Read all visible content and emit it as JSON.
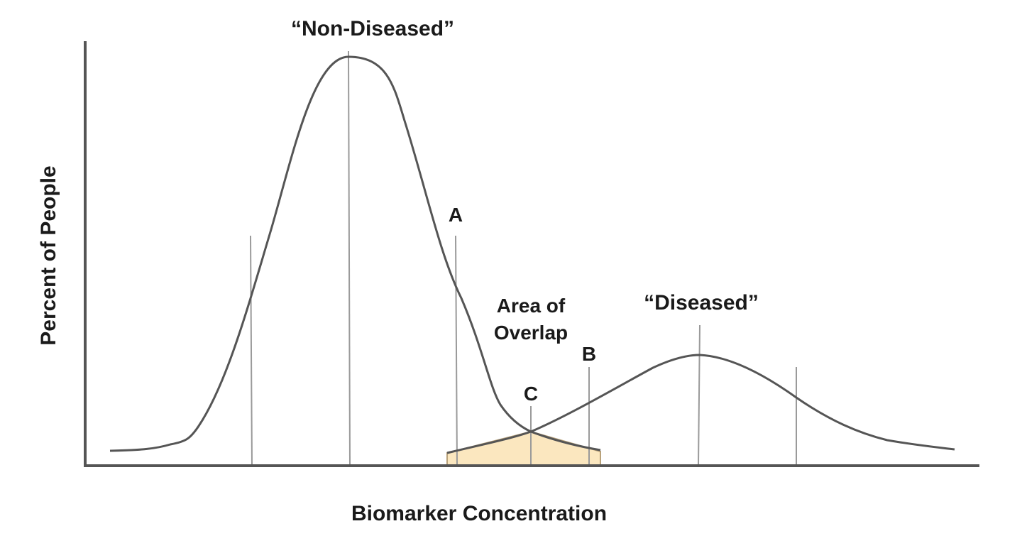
{
  "diagram": {
    "title_left_curve": "“Non-Diseased”",
    "title_right_curve": "“Diseased”",
    "y_axis_label": "Percent of People",
    "x_axis_label": "Biomarker Concentration",
    "overlap_label_line1": "Area of",
    "overlap_label_line2": "Overlap",
    "marker_a": "A",
    "marker_b": "B",
    "marker_c": "C"
  },
  "colors": {
    "curve": "#555555",
    "axis": "#555555",
    "marker_line": "#9a9a9a",
    "overlap_fill": "#fbe7bf",
    "overlap_stroke": "#b9a27a",
    "text": "#1a1a1a"
  }
}
